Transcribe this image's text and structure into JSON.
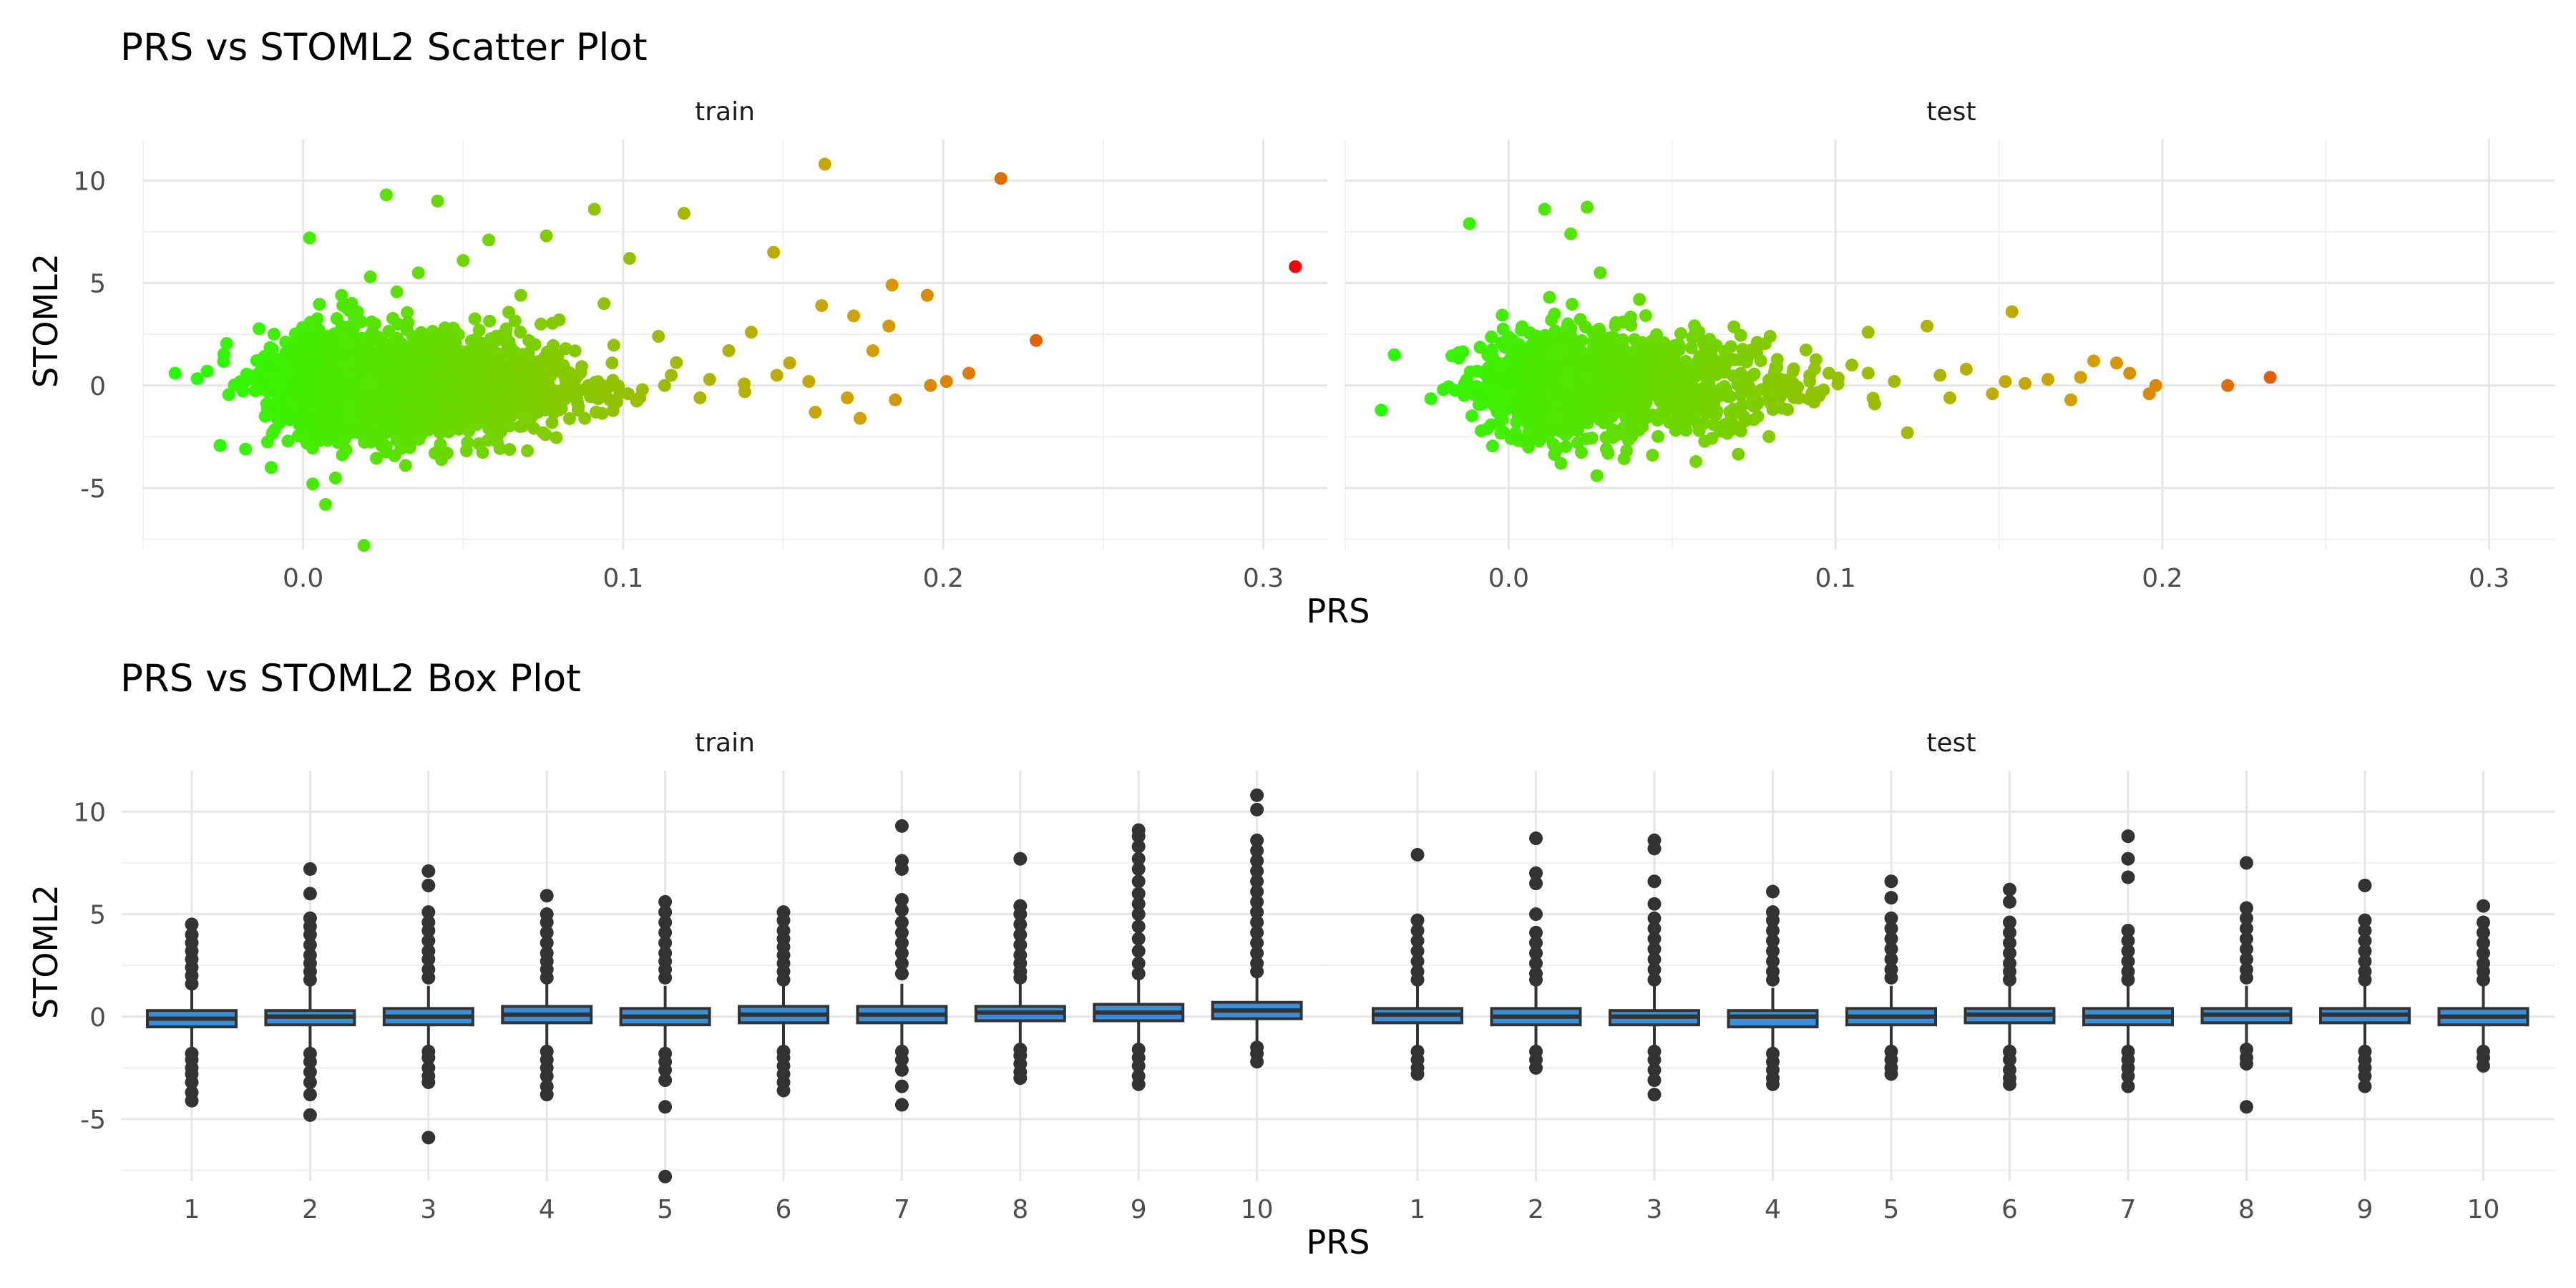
{
  "chart_data": [
    {
      "type": "scatter",
      "title": "PRS vs STOML2 Scatter Plot",
      "xlabel": "PRS",
      "ylabel": "STOML2",
      "facets": [
        "train",
        "test"
      ],
      "xlim": [
        -0.05,
        0.32
      ],
      "ylim": [
        -8,
        12
      ],
      "x_ticks": [
        "0.0",
        "0.1",
        "0.2",
        "0.3"
      ],
      "y_ticks": [
        "-5",
        "0",
        "5",
        "10"
      ],
      "color_scale": {
        "low": "#22ff00",
        "mid": "#d4a000",
        "high": "#ff0000",
        "by": "PRS"
      },
      "grid": true,
      "series": [
        {
          "facet": "train",
          "points": [
            [
              0.31,
              5.8
            ],
            [
              0.218,
              10.1
            ],
            [
              0.229,
              2.2
            ],
            [
              0.163,
              10.8
            ],
            [
              0.195,
              4.4
            ],
            [
              0.147,
              6.5
            ],
            [
              0.119,
              8.4
            ],
            [
              0.091,
              8.6
            ],
            [
              0.026,
              9.3
            ],
            [
              0.042,
              9.0
            ],
            [
              0.076,
              7.3
            ],
            [
              0.058,
              7.1
            ],
            [
              0.002,
              7.2
            ],
            [
              0.019,
              -7.8
            ],
            [
              0.007,
              -5.8
            ],
            [
              0.003,
              -4.8
            ],
            [
              -0.04,
              0.6
            ],
            [
              -0.03,
              0.7
            ],
            [
              0.162,
              3.9
            ],
            [
              0.172,
              3.4
            ],
            [
              0.184,
              4.9
            ],
            [
              0.183,
              2.9
            ],
            [
              0.178,
              1.7
            ],
            [
              0.201,
              0.2
            ],
            [
              0.208,
              0.6
            ],
            [
              0.196,
              0.0
            ],
            [
              0.185,
              -0.7
            ],
            [
              0.17,
              -0.6
            ],
            [
              0.174,
              -1.6
            ],
            [
              0.16,
              -1.3
            ],
            [
              0.133,
              1.7
            ],
            [
              0.14,
              2.6
            ],
            [
              0.152,
              1.1
            ],
            [
              0.111,
              2.4
            ],
            [
              0.102,
              6.2
            ],
            [
              0.115,
              0.5
            ],
            [
              0.127,
              0.3
            ],
            [
              0.098,
              -0.8
            ],
            [
              0.088,
              -1.6
            ],
            [
              0.075,
              -2.3
            ],
            [
              0.058,
              -2.1
            ],
            [
              0.045,
              -3.3
            ],
            [
              0.032,
              -3.9
            ],
            [
              -0.018,
              -3.1
            ],
            [
              -0.01,
              -4.0
            ],
            [
              0.0,
              2.4
            ],
            [
              0.012,
              4.4
            ],
            [
              0.021,
              5.3
            ],
            [
              0.036,
              5.5
            ],
            [
              0.05,
              6.1
            ],
            [
              0.068,
              4.4
            ],
            [
              0.08,
              3.2
            ],
            [
              0.094,
              4.0
            ],
            [
              0.082,
              1.8
            ],
            [
              0.064,
              1.9
            ],
            [
              0.148,
              0.5
            ],
            [
              0.158,
              0.2
            ],
            [
              0.138,
              -0.3
            ],
            [
              0.124,
              -0.6
            ],
            [
              0.106,
              -0.2
            ]
          ]
        },
        {
          "facet": "test",
          "points": [
            [
              0.233,
              0.4
            ],
            [
              0.22,
              0.0
            ],
            [
              0.154,
              3.6
            ],
            [
              0.128,
              2.9
            ],
            [
              0.11,
              2.6
            ],
            [
              0.122,
              -2.3
            ],
            [
              0.196,
              -0.4
            ],
            [
              0.19,
              0.6
            ],
            [
              0.198,
              0.0
            ],
            [
              0.186,
              1.1
            ],
            [
              0.179,
              1.2
            ],
            [
              0.172,
              -0.7
            ],
            [
              0.165,
              0.3
            ],
            [
              0.158,
              0.1
            ],
            [
              0.148,
              -0.4
            ],
            [
              0.14,
              0.8
            ],
            [
              0.132,
              0.5
            ],
            [
              0.118,
              0.2
            ],
            [
              0.105,
              1.0
            ],
            [
              0.095,
              -0.5
            ],
            [
              0.087,
              0.7
            ],
            [
              0.075,
              -0.3
            ],
            [
              0.062,
              1.5
            ],
            [
              0.05,
              -1.8
            ],
            [
              0.04,
              4.2
            ],
            [
              0.028,
              5.5
            ],
            [
              0.024,
              8.7
            ],
            [
              0.011,
              8.6
            ],
            [
              0.019,
              7.4
            ],
            [
              -0.012,
              7.9
            ],
            [
              0.027,
              -4.4
            ],
            [
              0.044,
              -3.4
            ],
            [
              -0.039,
              -1.2
            ],
            [
              -0.035,
              1.5
            ],
            [
              -0.02,
              -0.2
            ],
            [
              0.006,
              -2.6
            ],
            [
              0.016,
              -3.8
            ],
            [
              0.035,
              3.1
            ],
            [
              0.052,
              2.0
            ],
            [
              0.068,
              1.9
            ],
            [
              0.08,
              2.4
            ],
            [
              0.098,
              0.6
            ],
            [
              0.112,
              -0.9
            ],
            [
              0.135,
              -0.6
            ],
            [
              0.175,
              0.4
            ]
          ]
        }
      ]
    },
    {
      "type": "box",
      "title": "PRS vs STOML2 Box Plot",
      "xlabel": "PRS",
      "ylabel": "STOML2",
      "facets": [
        "train",
        "test"
      ],
      "ylim": [
        -8,
        12
      ],
      "y_ticks": [
        "-5",
        "0",
        "5",
        "10"
      ],
      "categories": [
        "1",
        "2",
        "3",
        "4",
        "5",
        "6",
        "7",
        "8",
        "9",
        "10"
      ],
      "box_fill": "#3a8fd8",
      "grid": true,
      "series": [
        {
          "facet": "train",
          "boxes": [
            {
              "q1": -0.5,
              "median": -0.1,
              "q3": 0.3,
              "whisker_low": -1.6,
              "whisker_high": 1.4,
              "outliers": [
                4.5,
                4.0,
                3.6,
                3.2,
                2.8,
                2.4,
                2.0,
                1.6,
                -1.8,
                -2.1,
                -2.5,
                -2.8,
                -3.2,
                -3.7,
                -4.1
              ]
            },
            {
              "q1": -0.4,
              "median": 0.0,
              "q3": 0.3,
              "whisker_low": -1.6,
              "whisker_high": 1.5,
              "outliers": [
                7.2,
                6.0,
                4.8,
                4.4,
                4.0,
                3.5,
                3.0,
                2.6,
                2.2,
                1.8,
                -1.8,
                -2.2,
                -2.7,
                -3.2,
                -3.8,
                -4.8
              ]
            },
            {
              "q1": -0.4,
              "median": 0.0,
              "q3": 0.4,
              "whisker_low": -1.5,
              "whisker_high": 1.5,
              "outliers": [
                7.1,
                6.4,
                5.1,
                4.6,
                4.2,
                3.7,
                3.2,
                2.8,
                2.3,
                1.9,
                -1.7,
                -2.0,
                -2.5,
                -2.9,
                -3.2,
                -5.9
              ]
            },
            {
              "q1": -0.3,
              "median": 0.1,
              "q3": 0.5,
              "whisker_low": -1.5,
              "whisker_high": 1.6,
              "outliers": [
                5.9,
                5.0,
                4.6,
                4.1,
                3.6,
                3.1,
                2.7,
                2.3,
                1.9,
                -1.7,
                -2.1,
                -2.5,
                -2.9,
                -3.4,
                -3.8
              ]
            },
            {
              "q1": -0.4,
              "median": 0.0,
              "q3": 0.4,
              "whisker_low": -1.6,
              "whisker_high": 1.5,
              "outliers": [
                5.6,
                5.1,
                4.6,
                4.1,
                3.6,
                3.1,
                2.7,
                2.3,
                1.9,
                -1.8,
                -2.2,
                -2.6,
                -3.1,
                -4.4,
                -7.8
              ]
            },
            {
              "q1": -0.3,
              "median": 0.1,
              "q3": 0.5,
              "whisker_low": -1.5,
              "whisker_high": 1.6,
              "outliers": [
                5.1,
                4.7,
                4.2,
                3.8,
                3.4,
                3.0,
                2.6,
                2.2,
                1.8,
                -1.7,
                -2.0,
                -2.4,
                -2.8,
                -3.2,
                -3.6
              ]
            },
            {
              "q1": -0.3,
              "median": 0.1,
              "q3": 0.5,
              "whisker_low": -1.5,
              "whisker_high": 1.6,
              "outliers": [
                9.3,
                7.6,
                7.2,
                5.7,
                5.2,
                4.6,
                4.1,
                3.6,
                3.1,
                2.6,
                2.1,
                -1.7,
                -2.1,
                -2.6,
                -3.4,
                -4.3
              ]
            },
            {
              "q1": -0.2,
              "median": 0.2,
              "q3": 0.5,
              "whisker_low": -1.4,
              "whisker_high": 1.7,
              "outliers": [
                7.7,
                5.4,
                5.0,
                4.5,
                4.0,
                3.5,
                3.0,
                2.6,
                2.2,
                1.9,
                -1.6,
                -1.9,
                -2.3,
                -2.7,
                -3.0
              ]
            },
            {
              "q1": -0.2,
              "median": 0.2,
              "q3": 0.6,
              "whisker_low": -1.4,
              "whisker_high": 1.8,
              "outliers": [
                9.1,
                8.8,
                8.3,
                7.7,
                7.2,
                6.6,
                6.0,
                5.5,
                5.0,
                4.4,
                3.8,
                3.2,
                2.6,
                2.1,
                -1.6,
                -2.0,
                -2.4,
                -2.9,
                -3.3
              ]
            },
            {
              "q1": -0.1,
              "median": 0.3,
              "q3": 0.7,
              "whisker_low": -1.3,
              "whisker_high": 2.0,
              "outliers": [
                10.8,
                10.1,
                8.6,
                8.1,
                7.6,
                7.1,
                6.6,
                6.1,
                5.6,
                5.1,
                4.6,
                4.1,
                3.6,
                3.1,
                2.6,
                2.2,
                -1.5,
                -1.8,
                -2.2
              ]
            }
          ]
        },
        {
          "facet": "test",
          "boxes": [
            {
              "q1": -0.3,
              "median": 0.1,
              "q3": 0.4,
              "whisker_low": -1.5,
              "whisker_high": 1.5,
              "outliers": [
                7.9,
                4.7,
                4.2,
                3.7,
                3.2,
                2.7,
                2.2,
                1.8,
                -1.7,
                -2.1,
                -2.5,
                -2.8
              ]
            },
            {
              "q1": -0.4,
              "median": 0.0,
              "q3": 0.4,
              "whisker_low": -1.5,
              "whisker_high": 1.5,
              "outliers": [
                8.7,
                7.0,
                6.5,
                5.0,
                4.1,
                3.6,
                3.1,
                2.6,
                2.1,
                1.8,
                -1.7,
                -2.1,
                -2.5
              ]
            },
            {
              "q1": -0.4,
              "median": 0.0,
              "q3": 0.3,
              "whisker_low": -1.5,
              "whisker_high": 1.5,
              "outliers": [
                8.6,
                8.2,
                6.6,
                5.5,
                4.8,
                4.3,
                3.8,
                3.3,
                2.8,
                2.3,
                1.8,
                -1.7,
                -2.1,
                -2.6,
                -3.1,
                -3.8
              ]
            },
            {
              "q1": -0.5,
              "median": 0.0,
              "q3": 0.3,
              "whisker_low": -1.6,
              "whisker_high": 1.4,
              "outliers": [
                6.1,
                5.1,
                4.7,
                4.2,
                3.7,
                3.2,
                2.7,
                2.2,
                1.8,
                -1.8,
                -2.2,
                -2.6,
                -3.0,
                -3.3
              ]
            },
            {
              "q1": -0.4,
              "median": 0.0,
              "q3": 0.4,
              "whisker_low": -1.5,
              "whisker_high": 1.5,
              "outliers": [
                6.6,
                5.8,
                4.8,
                4.3,
                3.8,
                3.3,
                2.8,
                2.3,
                1.9,
                -1.7,
                -2.1,
                -2.5,
                -2.8
              ]
            },
            {
              "q1": -0.3,
              "median": 0.1,
              "q3": 0.4,
              "whisker_low": -1.5,
              "whisker_high": 1.5,
              "outliers": [
                6.2,
                5.6,
                4.6,
                4.1,
                3.6,
                3.1,
                2.6,
                2.2,
                1.8,
                -1.7,
                -2.1,
                -2.6,
                -3.0,
                -3.3
              ]
            },
            {
              "q1": -0.4,
              "median": 0.0,
              "q3": 0.4,
              "whisker_low": -1.5,
              "whisker_high": 1.5,
              "outliers": [
                8.8,
                7.7,
                6.8,
                4.2,
                3.7,
                3.2,
                2.7,
                2.2,
                1.8,
                -1.7,
                -2.1,
                -2.5,
                -2.9,
                -3.4
              ]
            },
            {
              "q1": -0.3,
              "median": 0.1,
              "q3": 0.4,
              "whisker_low": -1.5,
              "whisker_high": 1.5,
              "outliers": [
                7.5,
                5.3,
                4.8,
                4.3,
                3.8,
                3.3,
                2.8,
                2.3,
                1.9,
                -1.6,
                -2.0,
                -2.3,
                -4.4
              ]
            },
            {
              "q1": -0.3,
              "median": 0.1,
              "q3": 0.4,
              "whisker_low": -1.5,
              "whisker_high": 1.5,
              "outliers": [
                6.4,
                4.7,
                4.2,
                3.7,
                3.2,
                2.7,
                2.2,
                1.8,
                -1.7,
                -2.1,
                -2.5,
                -2.9,
                -3.4
              ]
            },
            {
              "q1": -0.4,
              "median": 0.0,
              "q3": 0.4,
              "whisker_low": -1.5,
              "whisker_high": 1.5,
              "outliers": [
                5.4,
                4.6,
                4.1,
                3.6,
                3.1,
                2.6,
                2.2,
                1.8,
                -1.7,
                -2.0,
                -2.4
              ]
            }
          ]
        }
      ]
    }
  ]
}
